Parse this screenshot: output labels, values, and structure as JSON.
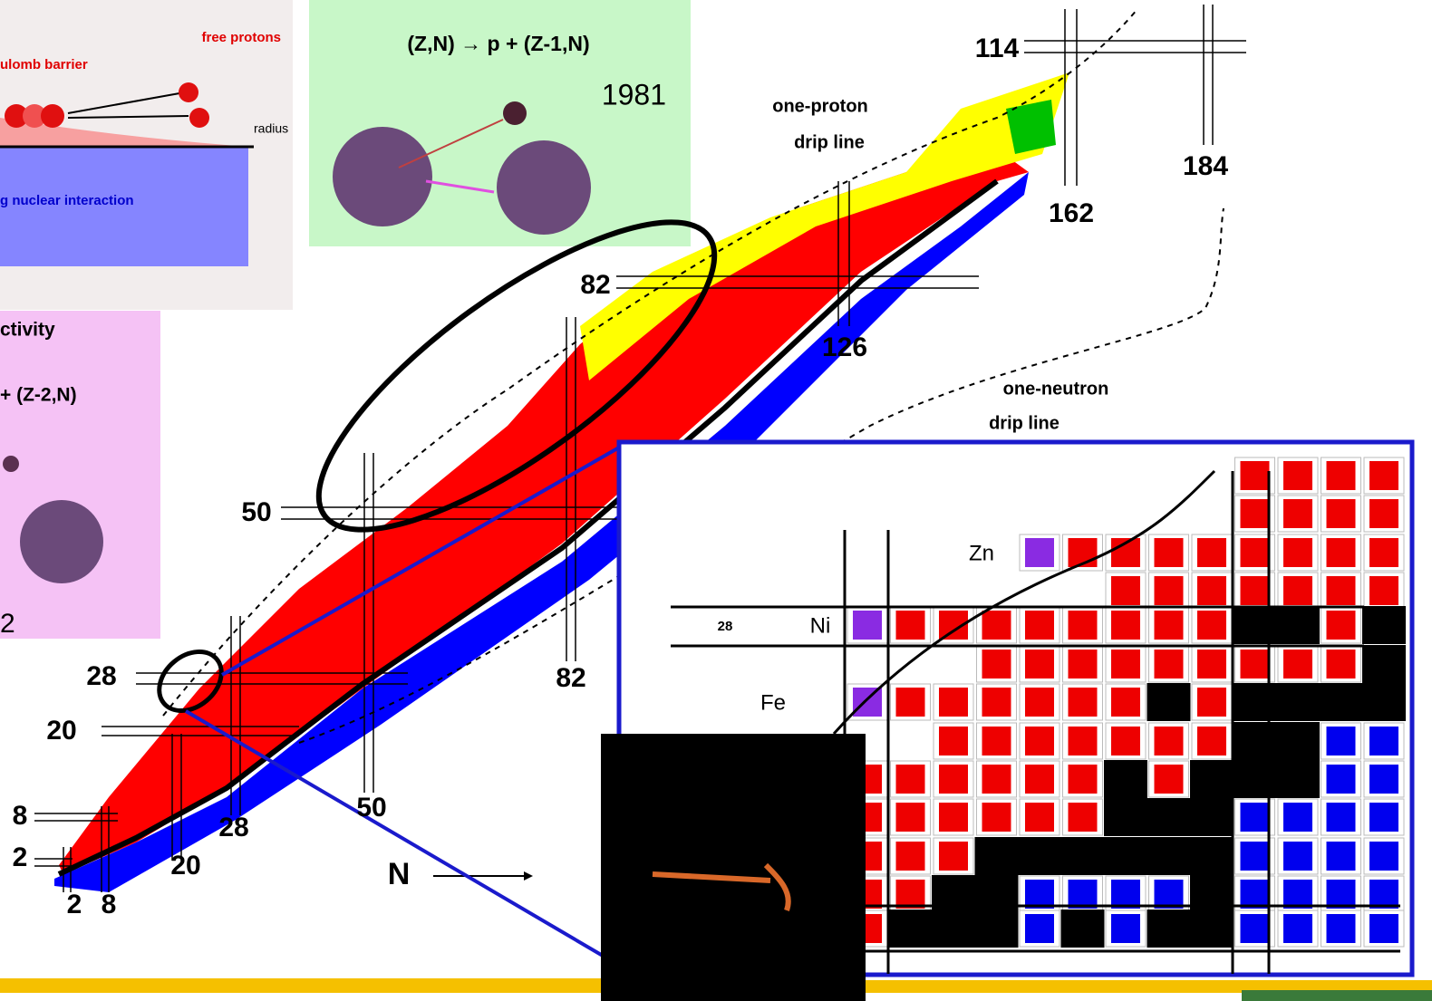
{
  "barrier_panel": {
    "free_protons": "free protons",
    "barrier": "ulomb barrier",
    "radius": "radius",
    "interaction": "g nuclear interaction"
  },
  "two_proton_panel": {
    "title": "ctivity",
    "reaction": "+ (Z-2,N)",
    "year": "2"
  },
  "one_proton_panel": {
    "reaction": "(Z,N) → p + (Z-1,N)",
    "year": "1981"
  },
  "chart": {
    "proton_magic": [
      "114",
      "82",
      "50",
      "28",
      "20",
      "8",
      "2"
    ],
    "neutron_magic": [
      "184",
      "162",
      "126",
      "82",
      "50",
      "28",
      "20",
      "8",
      "2"
    ],
    "axis_label": "N",
    "proton_drip": [
      "one-proton",
      "drip line"
    ],
    "neutron_drip": [
      "one-neutron",
      "drip line"
    ]
  },
  "inset": {
    "zn": "Zn",
    "ni": "Ni",
    "fe": "Fe",
    "magic": "28"
  }
}
